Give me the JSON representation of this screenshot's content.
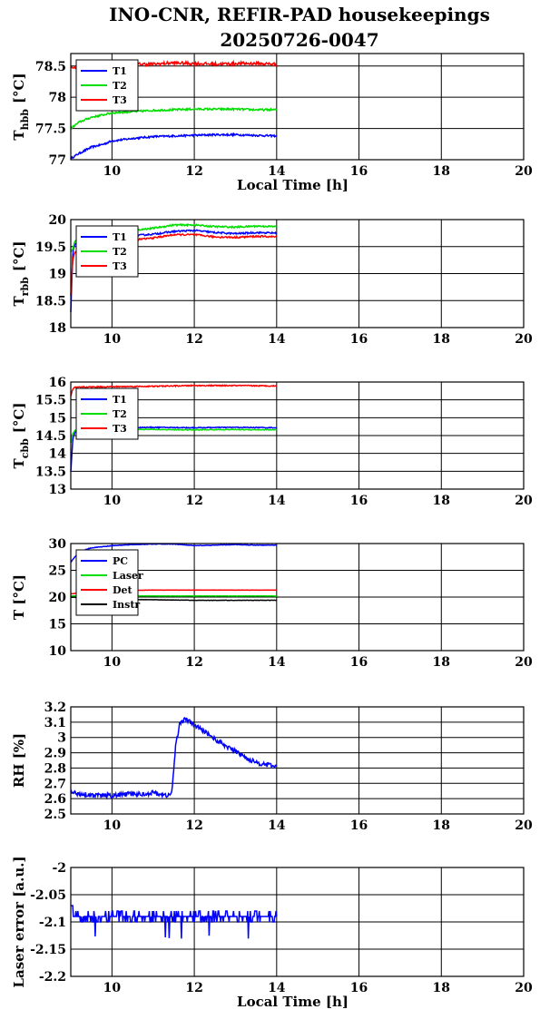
{
  "title_line1": "INO-CNR, REFIR-PAD housekeepings",
  "title_line2": "20250726-0047",
  "x_label": "Local Time [h]",
  "x_ticks": [
    "10",
    "12",
    "14",
    "16",
    "18",
    "20"
  ],
  "colors": {
    "blue": "#0000ff",
    "green": "#00dd00",
    "red": "#ff0000",
    "black": "#000000"
  },
  "chart_data": [
    {
      "type": "line",
      "ylabel_main": "T",
      "ylabel_sub": "hbb",
      "ylabel_unit": "[°C]",
      "xlabel": "Local Time [h]",
      "xlim": [
        9,
        20
      ],
      "ylim": [
        77,
        78.7
      ],
      "yticks": [
        "77",
        "77.5",
        "78",
        "78.5"
      ],
      "grid": true,
      "legend": "top-left",
      "series": [
        {
          "name": "T1",
          "color": "#0000ff",
          "noise": 0.015,
          "x": [
            9.0,
            9.2,
            9.5,
            9.8,
            10.0,
            10.5,
            11.0,
            11.5,
            12.0,
            12.5,
            13.0,
            13.5,
            14.0
          ],
          "y": [
            77.02,
            77.1,
            77.2,
            77.25,
            77.3,
            77.34,
            77.37,
            77.38,
            77.39,
            77.4,
            77.4,
            77.39,
            77.38
          ]
        },
        {
          "name": "T2",
          "color": "#00dd00",
          "noise": 0.015,
          "x": [
            9.0,
            9.2,
            9.5,
            9.8,
            10.0,
            10.5,
            11.0,
            11.5,
            12.0,
            12.5,
            13.0,
            13.5,
            14.0
          ],
          "y": [
            77.5,
            77.6,
            77.68,
            77.72,
            77.75,
            77.77,
            77.79,
            77.8,
            77.81,
            77.81,
            77.81,
            77.8,
            77.8
          ]
        },
        {
          "name": "T3",
          "color": "#ff0000",
          "noise": 0.025,
          "x": [
            9.0,
            9.5,
            10.0,
            10.5,
            11.0,
            11.5,
            12.0,
            12.5,
            13.0,
            13.5,
            14.0
          ],
          "y": [
            78.48,
            78.5,
            78.52,
            78.53,
            78.53,
            78.55,
            78.54,
            78.53,
            78.54,
            78.54,
            78.53
          ]
        }
      ]
    },
    {
      "type": "line",
      "ylabel_main": "T",
      "ylabel_sub": "rbb",
      "ylabel_unit": "[°C]",
      "xlabel": "",
      "xlim": [
        9,
        20
      ],
      "ylim": [
        18,
        20
      ],
      "yticks": [
        "18",
        "18.5",
        "19",
        "19.5",
        "20"
      ],
      "grid": true,
      "legend": "top-left",
      "series": [
        {
          "name": "T1",
          "color": "#0000ff",
          "noise": 0.015,
          "x": [
            9.0,
            9.05,
            9.1,
            9.3,
            9.6,
            10.0,
            10.5,
            11.0,
            11.5,
            12.0,
            12.5,
            13.0,
            13.5,
            14.0
          ],
          "y": [
            18.3,
            19.4,
            19.55,
            19.62,
            19.66,
            19.68,
            19.7,
            19.73,
            19.78,
            19.8,
            19.76,
            19.74,
            19.76,
            19.75
          ]
        },
        {
          "name": "T2",
          "color": "#00dd00",
          "noise": 0.015,
          "x": [
            9.0,
            9.05,
            9.1,
            9.3,
            9.6,
            10.0,
            10.5,
            11.0,
            11.5,
            12.0,
            12.5,
            13.0,
            13.5,
            14.0
          ],
          "y": [
            19.4,
            19.45,
            19.6,
            19.68,
            19.72,
            19.76,
            19.8,
            19.84,
            19.9,
            19.9,
            19.87,
            19.86,
            19.88,
            19.87
          ]
        },
        {
          "name": "T3",
          "color": "#ff0000",
          "noise": 0.015,
          "x": [
            9.0,
            9.05,
            9.1,
            9.3,
            9.6,
            10.0,
            10.5,
            11.0,
            11.5,
            12.0,
            12.5,
            13.0,
            13.5,
            14.0
          ],
          "y": [
            18.6,
            19.25,
            19.4,
            19.5,
            19.56,
            19.6,
            19.62,
            19.66,
            19.72,
            19.72,
            19.68,
            19.67,
            19.69,
            19.68
          ]
        }
      ]
    },
    {
      "type": "line",
      "ylabel_main": "T",
      "ylabel_sub": "cbb",
      "ylabel_unit": "[°C]",
      "xlabel": "",
      "xlim": [
        9,
        20
      ],
      "ylim": [
        13,
        16
      ],
      "yticks": [
        "13",
        "13.5",
        "14",
        "14.5",
        "15",
        "15.5",
        "16"
      ],
      "grid": true,
      "legend": "top-left",
      "series": [
        {
          "name": "T1",
          "color": "#0000ff",
          "noise": 0.012,
          "x": [
            9.0,
            9.05,
            9.1,
            9.2,
            9.4,
            10.0,
            11.0,
            12.0,
            13.0,
            14.0
          ],
          "y": [
            13.5,
            14.4,
            14.6,
            14.7,
            14.72,
            14.72,
            14.73,
            14.72,
            14.73,
            14.72
          ]
        },
        {
          "name": "T2",
          "color": "#00dd00",
          "noise": 0.012,
          "x": [
            9.0,
            9.05,
            9.1,
            9.2,
            9.4,
            10.0,
            11.0,
            12.0,
            13.0,
            14.0
          ],
          "y": [
            14.3,
            14.55,
            14.65,
            14.67,
            14.68,
            14.68,
            14.67,
            14.66,
            14.67,
            14.66
          ]
        },
        {
          "name": "T3",
          "color": "#ff0000",
          "noise": 0.015,
          "x": [
            9.0,
            9.05,
            9.1,
            9.3,
            10.0,
            11.0,
            12.0,
            13.0,
            14.0
          ],
          "y": [
            15.6,
            15.8,
            15.85,
            15.86,
            15.87,
            15.88,
            15.9,
            15.9,
            15.89
          ]
        }
      ]
    },
    {
      "type": "line",
      "ylabel_main": "T [°C]",
      "ylabel_sub": "",
      "ylabel_unit": "",
      "xlabel": "",
      "xlim": [
        9,
        20
      ],
      "ylim": [
        10,
        30
      ],
      "yticks": [
        "10",
        "15",
        "20",
        "25",
        "30"
      ],
      "grid": true,
      "legend": "top-left",
      "series": [
        {
          "name": "PC",
          "color": "#0000ff",
          "noise": 0.05,
          "x": [
            9.0,
            9.2,
            9.5,
            10.0,
            10.5,
            11.0,
            11.5,
            12.0,
            12.5,
            13.0,
            13.5,
            14.0
          ],
          "y": [
            26.5,
            28.5,
            29.2,
            29.6,
            29.8,
            29.9,
            29.9,
            29.6,
            29.7,
            29.8,
            29.7,
            29.7
          ]
        },
        {
          "name": "Laser",
          "color": "#00dd00",
          "noise": 0.03,
          "x": [
            9.0,
            9.5,
            10.0,
            11.0,
            12.0,
            13.0,
            14.0
          ],
          "y": [
            20.2,
            20.3,
            20.3,
            20.2,
            20.2,
            20.2,
            20.2
          ]
        },
        {
          "name": "Det",
          "color": "#ff0000",
          "noise": 0.02,
          "x": [
            9.0,
            9.5,
            10.0,
            11.0,
            12.0,
            13.0,
            14.0
          ],
          "y": [
            20.6,
            21.0,
            21.2,
            21.3,
            21.3,
            21.3,
            21.3
          ]
        },
        {
          "name": "Instr",
          "color": "#000000",
          "noise": 0.03,
          "x": [
            9.0,
            9.5,
            10.0,
            11.0,
            12.0,
            13.0,
            14.0
          ],
          "y": [
            20.0,
            19.8,
            19.6,
            19.5,
            19.4,
            19.4,
            19.4
          ]
        }
      ]
    },
    {
      "type": "line",
      "ylabel_main": "RH [%]",
      "ylabel_sub": "",
      "ylabel_unit": "",
      "xlabel": "",
      "xlim": [
        9,
        20
      ],
      "ylim": [
        2.5,
        3.2
      ],
      "yticks": [
        "2.5",
        "2.6",
        "2.7",
        "2.8",
        "2.9",
        "3",
        "3.1",
        "3.2"
      ],
      "grid": true,
      "legend": "none",
      "series": [
        {
          "name": "",
          "color": "#0000ff",
          "noise": 0.015,
          "x": [
            9.0,
            9.3,
            9.6,
            10.0,
            10.4,
            10.8,
            11.0,
            11.3,
            11.45,
            11.55,
            11.65,
            11.8,
            12.0,
            12.3,
            12.6,
            13.0,
            13.3,
            13.6,
            14.0
          ],
          "y": [
            2.64,
            2.63,
            2.62,
            2.62,
            2.63,
            2.63,
            2.64,
            2.62,
            2.63,
            2.95,
            3.1,
            3.12,
            3.08,
            3.03,
            2.97,
            2.91,
            2.86,
            2.83,
            2.81
          ]
        }
      ]
    },
    {
      "type": "line",
      "ylabel_main": "Laser error [a.u.]",
      "ylabel_sub": "",
      "ylabel_unit": "",
      "xlabel": "Local Time [h]",
      "xlim": [
        9,
        20
      ],
      "ylim": [
        -2.2,
        -2.0
      ],
      "yticks": [
        "-2.2",
        "-2.15",
        "-2.1",
        "-2.05",
        "-2"
      ],
      "grid": true,
      "legend": "none",
      "series": [
        {
          "name": "",
          "color": "#0000ff",
          "noise": 0.0,
          "step": true,
          "levels": [
            -2.08,
            -2.09,
            -2.1
          ],
          "x": [
            9.0,
            14.0
          ],
          "y": [
            -2.09,
            -2.09
          ]
        }
      ]
    }
  ]
}
